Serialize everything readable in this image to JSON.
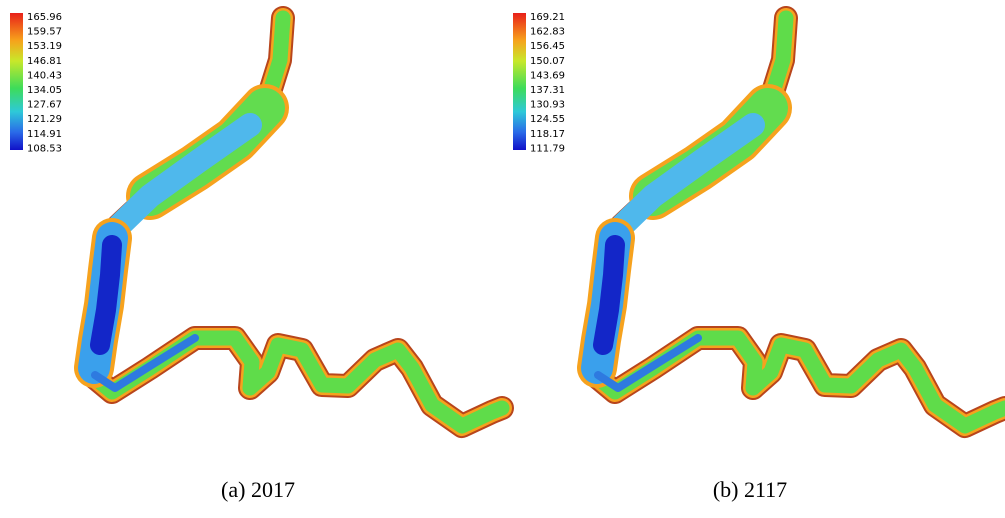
{
  "panels": [
    {
      "legend": [
        "165.96",
        "159.57",
        "153.19",
        "146.81",
        "140.43",
        "134.05",
        "127.67",
        "121.29",
        "114.91",
        "108.53"
      ],
      "caption": "(a) 2017"
    },
    {
      "legend": [
        "169.21",
        "162.83",
        "156.45",
        "150.07",
        "143.69",
        "137.31",
        "130.93",
        "124.55",
        "118.17",
        "111.79"
      ],
      "caption": "(b) 2117"
    }
  ]
}
